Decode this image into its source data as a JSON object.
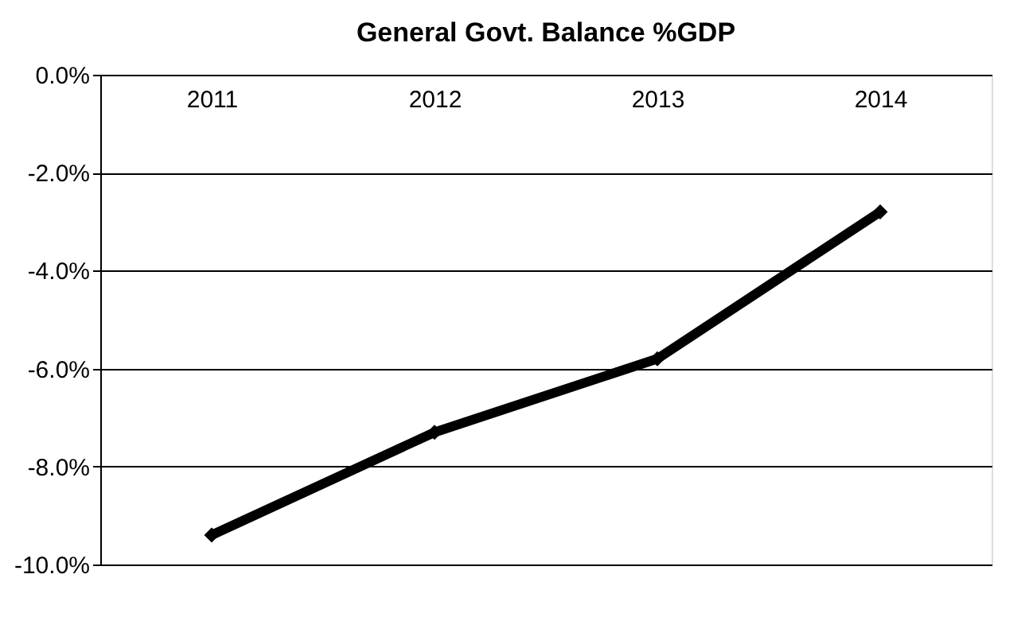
{
  "chart_data": {
    "type": "line",
    "title": "General Govt. Balance %GDP",
    "categories": [
      "2011",
      "2012",
      "2013",
      "2014"
    ],
    "series": [
      {
        "color": "#000000",
        "values": [
          -9.4,
          -7.3,
          -5.8,
          -2.8
        ]
      }
    ],
    "ylim": [
      -10,
      0
    ],
    "yticks": [
      {
        "value": -10,
        "label": "-10.0%"
      },
      {
        "value": -8,
        "label": "-8.0%"
      },
      {
        "value": -6,
        "label": "-6.0%"
      },
      {
        "value": -4,
        "label": "-4.0%"
      },
      {
        "value": -2,
        "label": "-2.0%"
      },
      {
        "value": 0,
        "label": "0.0%"
      }
    ],
    "grid": "y",
    "marker": "diamond",
    "line_style": "solid"
  }
}
